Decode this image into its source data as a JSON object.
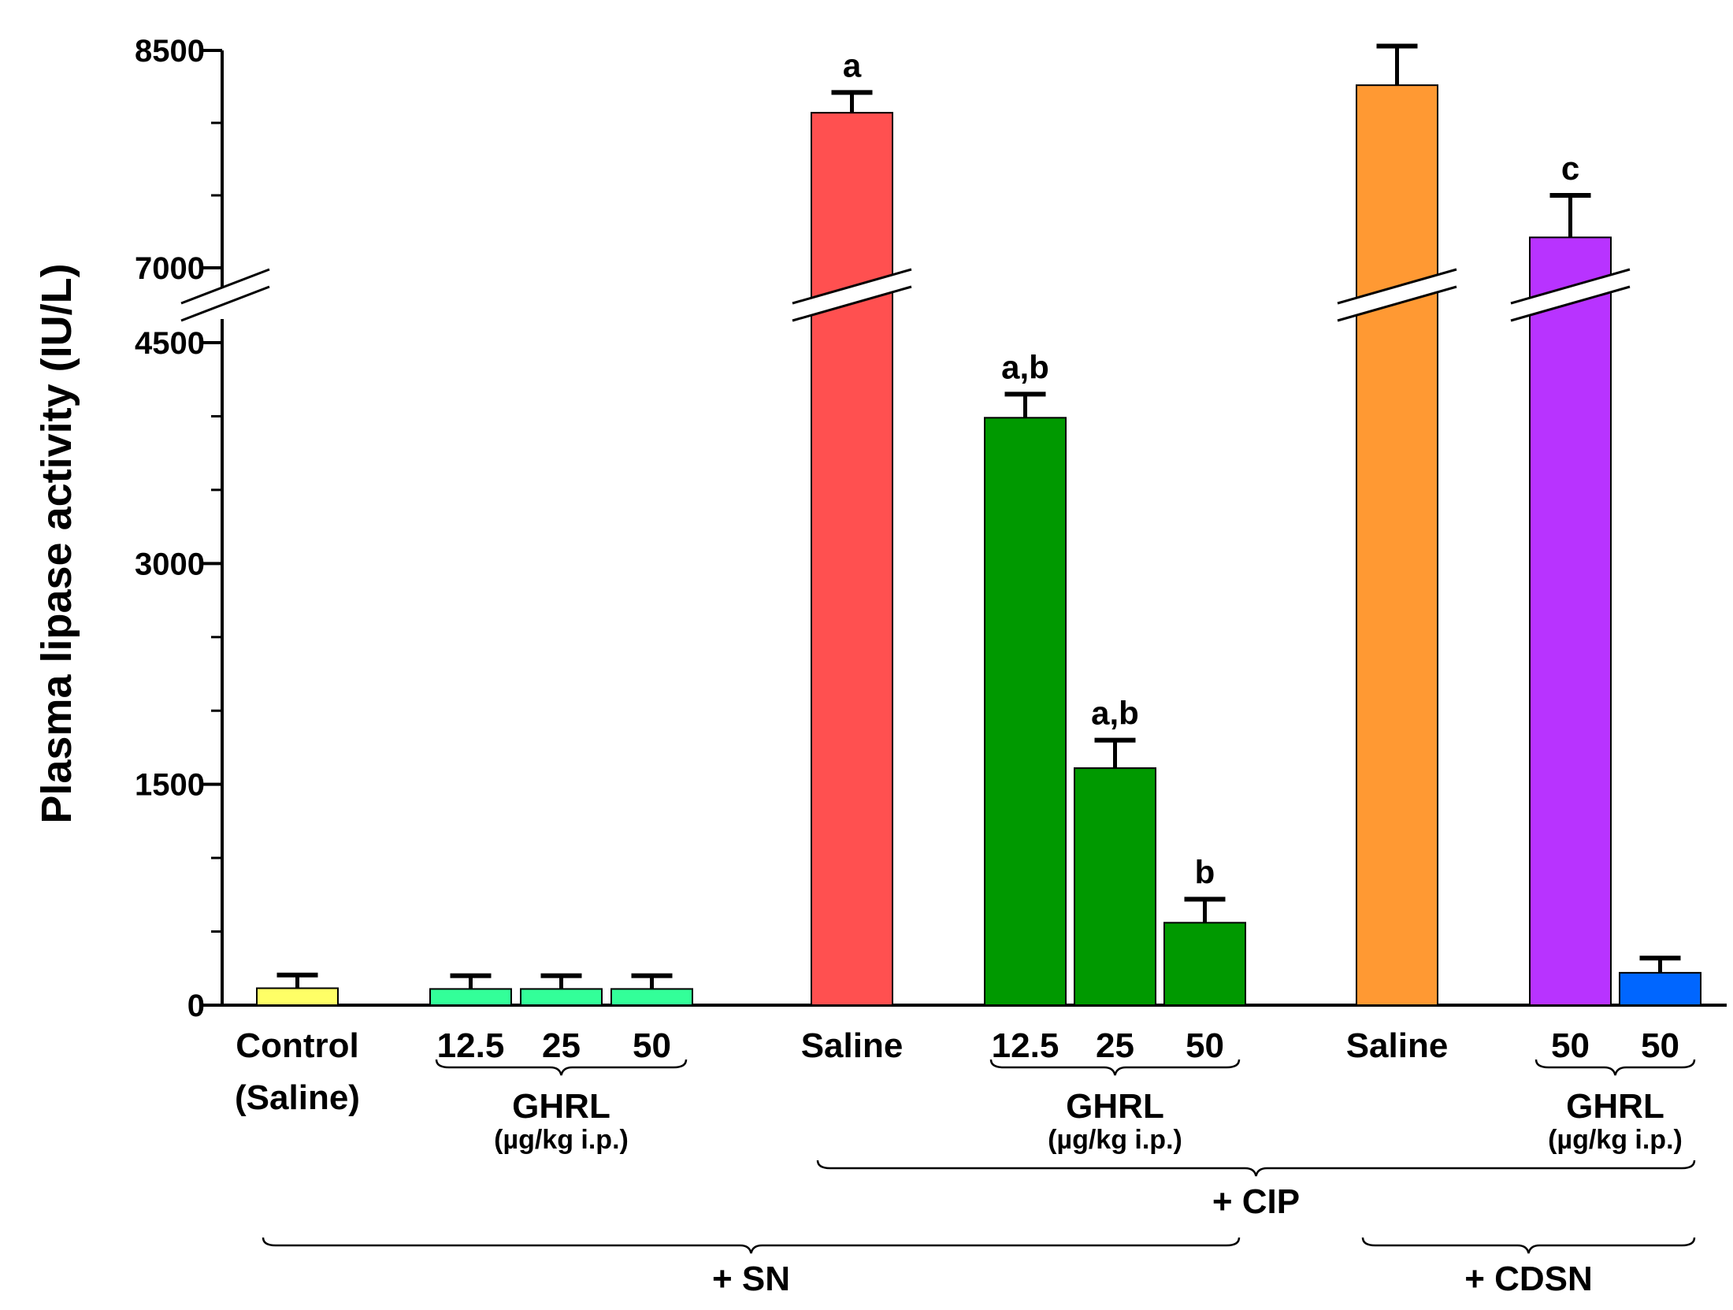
{
  "chart_data": {
    "type": "bar",
    "ylabel": "Plasma lipase activity (IU/L)",
    "axis": {
      "ticks_lower": [
        0,
        1500,
        3000,
        4500
      ],
      "ticks_upper": [
        7000,
        8500
      ],
      "lower_range": [
        0,
        4500
      ],
      "upper_range": [
        7000,
        8500
      ],
      "minor_step": 500
    },
    "bars": [
      {
        "group": "control",
        "label": "Control",
        "label2": "(Saline)",
        "value": 115,
        "error": 90,
        "color": "#ffff66",
        "annotation": ""
      },
      {
        "group": "sn_ghrl",
        "label": "12.5",
        "value": 110,
        "error": 90,
        "color": "#33ff99",
        "annotation": ""
      },
      {
        "group": "sn_ghrl",
        "label": "25",
        "value": 110,
        "error": 90,
        "color": "#33ff99",
        "annotation": ""
      },
      {
        "group": "sn_ghrl",
        "label": "50",
        "value": 110,
        "error": 90,
        "color": "#33ff99",
        "annotation": ""
      },
      {
        "group": "cip_saline",
        "label": "Saline",
        "value": 8070,
        "error": 140,
        "color": "#ff5050",
        "annotation": "a"
      },
      {
        "group": "cip_ghrl",
        "label": "12.5",
        "value": 3990,
        "error": 160,
        "color": "#009900",
        "annotation": "a,b"
      },
      {
        "group": "cip_ghrl",
        "label": "25",
        "value": 1610,
        "error": 190,
        "color": "#009900",
        "annotation": "a,b"
      },
      {
        "group": "cip_ghrl",
        "label": "50",
        "value": 560,
        "error": 160,
        "color": "#009900",
        "annotation": "b"
      },
      {
        "group": "cdsn_saline",
        "label": "Saline",
        "value": 8260,
        "error": 270,
        "color": "#ff9933",
        "annotation": ""
      },
      {
        "group": "cdsn_ghrl",
        "label": "50",
        "value": 7210,
        "error": 290,
        "color": "#b833ff",
        "annotation": "c"
      },
      {
        "group": "cdsn_ghrl",
        "label": "50",
        "value": 220,
        "error": 100,
        "color": "#0066ff",
        "annotation": ""
      }
    ],
    "brackets": [
      {
        "label": "GHRL",
        "sublabel": "(µg/kg i.p.)",
        "from_bar": 1,
        "to_bar": 3,
        "level": 1
      },
      {
        "label": "GHRL",
        "sublabel": "(µg/kg i.p.)",
        "from_bar": 5,
        "to_bar": 7,
        "level": 1
      },
      {
        "label": "GHRL",
        "sublabel": "(µg/kg i.p.)",
        "from_bar": 9,
        "to_bar": 10,
        "level": 1
      },
      {
        "label": "+ CIP",
        "from_bar": 4,
        "to_bar": 10,
        "level": 2
      },
      {
        "label": "+ SN",
        "from_bar": 0,
        "to_bar": 7,
        "level": 3
      },
      {
        "label": "+ CDSN",
        "from_bar": 8,
        "to_bar": 10,
        "level": 3
      }
    ]
  }
}
